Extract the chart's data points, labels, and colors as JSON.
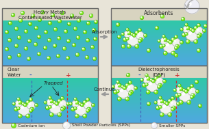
{
  "panel_titles": [
    "Heavy Metals\nContaminated Wastewater",
    "Adsorbents",
    "Clear\nWater",
    "Dielectrophoresis\n(DEP)"
  ],
  "arrow_labels": [
    "Adsorption",
    "Continue"
  ],
  "panel_label_trapped": "Trapped",
  "legend_labels": [
    "Cadmium ion",
    "Shell Powder Particles (SPPs)",
    "Smaller SPPs"
  ],
  "water_teal": "#30c8a8",
  "water_teal2": "#50d4b8",
  "water_blue": "#50a8e0",
  "water_blue2": "#3888c8",
  "bg_color": "#e8e4d8",
  "panel_bg_white": "#d8d4c8",
  "cadmium_color": "#88ee22",
  "cadmium_edge": "#33aa00",
  "spp_color": "#f2f2f2",
  "spp_edge": "#bbbbbb",
  "spp_shadow": "#dddddd",
  "neg_line_color": "#4466bb",
  "pos_line_color": "#cc3333",
  "arrow_color": "#b0b0b0",
  "text_color": "#222222",
  "figsize": [
    3.05,
    1.89
  ],
  "dpi": 100
}
